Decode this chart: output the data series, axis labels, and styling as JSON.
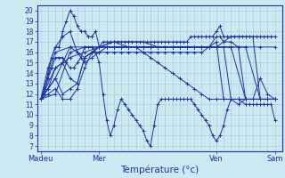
{
  "xlabel": "Température (°c)",
  "bg_color": "#cce8f0",
  "line_color": "#1a34a8",
  "grid_color": "#a8c8d8",
  "ylim": [
    6.5,
    20.5
  ],
  "yticks": [
    7,
    8,
    9,
    10,
    11,
    12,
    13,
    14,
    15,
    16,
    17,
    18,
    19,
    20
  ],
  "xtick_labels": [
    "Madeu",
    "Mer",
    "Ven",
    "Sam"
  ],
  "xtick_positions": [
    0,
    48,
    144,
    192
  ],
  "xlim": [
    -3,
    198
  ],
  "total_hours": 192,
  "series": [
    [
      0,
      11.5,
      3,
      12.5,
      6,
      14.0,
      9,
      15.5,
      12,
      16.5,
      15,
      16.5,
      18,
      18.0,
      21,
      19.0,
      24,
      20.0,
      27,
      19.5,
      30,
      18.5,
      33,
      18.0,
      36,
      18.0,
      39,
      17.5,
      42,
      17.5,
      45,
      18.0,
      48,
      16.5,
      51,
      17.0,
      54,
      17.0,
      57,
      17.0,
      60,
      17.0,
      63,
      17.0,
      66,
      17.0,
      69,
      17.0,
      72,
      17.0,
      75,
      17.0,
      78,
      17.0,
      81,
      17.0,
      84,
      17.0,
      87,
      17.0,
      90,
      17.0,
      93,
      17.0,
      96,
      17.0,
      99,
      17.0,
      102,
      17.0,
      105,
      17.0,
      108,
      17.0,
      111,
      17.0,
      114,
      17.0,
      117,
      17.0,
      120,
      17.0,
      123,
      17.5,
      126,
      17.5,
      129,
      17.5,
      132,
      17.5,
      135,
      17.5,
      138,
      17.5,
      141,
      17.5,
      144,
      18.0,
      147,
      18.5,
      150,
      17.5,
      153,
      17.5,
      156,
      17.5,
      159,
      17.5,
      162,
      17.5,
      165,
      17.5,
      168,
      17.5,
      171,
      17.5,
      174,
      17.5,
      177,
      17.5,
      180,
      17.5,
      183,
      17.5,
      186,
      17.5,
      189,
      17.5,
      192,
      17.5
    ],
    [
      0,
      11.5,
      6,
      14.5,
      12,
      16.5,
      18,
      17.5,
      24,
      18.0,
      30,
      16.0,
      36,
      15.0,
      42,
      15.5,
      48,
      16.0,
      54,
      16.0,
      60,
      16.0,
      66,
      16.0,
      72,
      16.0,
      78,
      16.0,
      84,
      16.0,
      90,
      16.0,
      96,
      16.0,
      102,
      16.0,
      108,
      16.0,
      114,
      16.0,
      120,
      16.0,
      126,
      16.0,
      132,
      16.0,
      138,
      16.5,
      144,
      17.5,
      147,
      17.5,
      150,
      17.0,
      156,
      17.0,
      162,
      16.5,
      168,
      11.5,
      174,
      11.5,
      180,
      13.5,
      186,
      12.0,
      192,
      11.5
    ],
    [
      0,
      11.5,
      3,
      12.0,
      6,
      13.5,
      9,
      14.5,
      12,
      15.5,
      15,
      15.5,
      18,
      15.5,
      21,
      15.0,
      24,
      14.5,
      27,
      14.5,
      30,
      15.0,
      33,
      15.5,
      36,
      16.5,
      39,
      16.5,
      42,
      16.5,
      45,
      16.0,
      48,
      15.0,
      51,
      12.0,
      54,
      9.5,
      57,
      8.0,
      60,
      9.0,
      63,
      10.5,
      66,
      11.5,
      69,
      11.0,
      72,
      10.5,
      75,
      10.0,
      78,
      9.5,
      81,
      9.0,
      84,
      8.5,
      87,
      7.5,
      90,
      7.0,
      93,
      9.0,
      96,
      11.0,
      99,
      11.5,
      102,
      11.5,
      105,
      11.5,
      108,
      11.5,
      111,
      11.5,
      114,
      11.5,
      117,
      11.5,
      120,
      11.5,
      123,
      11.5,
      126,
      11.0,
      129,
      10.5,
      132,
      10.0,
      135,
      9.5,
      138,
      9.0,
      141,
      8.0,
      144,
      7.5,
      147,
      8.0,
      150,
      9.0,
      153,
      10.5,
      156,
      11.5,
      162,
      11.5,
      168,
      11.0,
      171,
      11.0,
      174,
      11.0,
      177,
      11.0,
      180,
      11.0,
      183,
      11.0,
      186,
      11.0,
      189,
      11.0,
      192,
      9.5
    ],
    [
      0,
      11.5,
      6,
      12.5,
      12,
      13.5,
      18,
      12.0,
      24,
      12.5,
      30,
      13.0,
      36,
      15.5,
      42,
      16.0,
      48,
      16.5,
      54,
      16.5,
      60,
      16.5,
      66,
      16.5,
      72,
      16.5,
      78,
      16.5,
      84,
      16.5,
      90,
      16.5,
      96,
      16.5,
      102,
      16.5,
      108,
      16.5,
      114,
      16.5,
      120,
      16.5,
      126,
      16.5,
      132,
      16.5,
      138,
      16.5,
      144,
      17.0,
      150,
      11.5,
      156,
      11.5,
      162,
      11.5,
      168,
      11.5,
      174,
      11.5,
      180,
      11.5,
      186,
      11.5,
      192,
      11.5
    ],
    [
      0,
      11.5,
      6,
      12.0,
      12,
      12.5,
      18,
      11.5,
      24,
      11.5,
      30,
      12.5,
      36,
      14.5,
      42,
      16.0,
      48,
      16.5,
      54,
      16.5,
      60,
      16.5,
      66,
      16.5,
      72,
      16.5,
      78,
      16.5,
      84,
      16.5,
      90,
      16.5,
      96,
      16.5,
      102,
      16.5,
      108,
      16.5,
      114,
      16.5,
      120,
      16.5,
      126,
      16.5,
      132,
      16.5,
      138,
      16.5,
      144,
      16.5,
      150,
      17.0,
      156,
      17.5,
      162,
      17.5,
      168,
      17.5,
      174,
      17.5,
      180,
      11.5,
      186,
      11.5,
      192,
      11.5
    ],
    [
      0,
      11.5,
      12,
      12.0,
      24,
      16.0,
      36,
      16.5,
      48,
      16.5,
      60,
      17.0,
      72,
      17.0,
      84,
      17.0,
      96,
      16.5,
      108,
      16.5,
      120,
      16.5,
      132,
      16.5,
      144,
      16.5,
      156,
      16.5,
      168,
      16.5,
      180,
      16.5,
      192,
      16.5
    ],
    [
      0,
      11.5,
      12,
      14.5,
      24,
      15.5,
      36,
      16.0,
      48,
      16.5,
      60,
      17.0,
      72,
      16.5,
      84,
      16.5,
      96,
      16.5,
      108,
      16.5,
      120,
      16.5,
      132,
      16.5,
      144,
      16.5,
      156,
      16.5,
      168,
      16.5,
      180,
      11.5,
      192,
      11.5
    ],
    [
      0,
      11.5,
      12,
      13.5,
      18,
      15.0,
      24,
      16.5,
      30,
      16.0,
      36,
      15.5,
      42,
      16.0,
      48,
      16.5,
      54,
      16.5,
      60,
      16.5,
      66,
      16.5,
      72,
      16.5,
      78,
      16.5,
      84,
      16.0,
      90,
      15.5,
      96,
      15.0,
      102,
      14.5,
      108,
      14.0,
      114,
      13.5,
      120,
      13.0,
      126,
      12.5,
      132,
      12.0,
      138,
      11.5,
      144,
      11.5,
      150,
      11.5,
      156,
      11.5,
      162,
      11.5,
      168,
      11.5,
      174,
      11.5,
      180,
      11.5,
      186,
      11.5,
      192,
      11.5
    ],
    [
      0,
      11.5,
      6,
      12.5,
      12,
      14.5,
      18,
      15.0,
      24,
      13.5,
      30,
      13.0,
      36,
      15.5,
      42,
      16.0,
      48,
      16.0,
      54,
      16.5,
      60,
      16.5,
      66,
      16.5,
      72,
      16.5,
      78,
      16.5,
      84,
      16.5,
      90,
      16.5,
      96,
      16.5,
      102,
      16.5,
      108,
      16.5,
      114,
      16.5,
      120,
      16.5,
      126,
      16.5,
      132,
      16.5,
      138,
      16.5,
      144,
      16.5,
      150,
      16.5,
      156,
      11.5,
      162,
      11.0,
      168,
      11.5,
      174,
      11.5,
      180,
      11.5,
      186,
      11.5,
      192,
      11.5
    ],
    [
      0,
      11.5,
      12,
      16.0,
      24,
      16.5,
      36,
      16.5,
      48,
      16.5,
      60,
      16.5,
      72,
      16.5,
      84,
      16.5,
      96,
      16.5,
      108,
      16.5,
      120,
      16.5,
      132,
      16.5,
      144,
      16.5,
      156,
      16.5,
      168,
      11.5,
      180,
      11.5,
      192,
      11.5
    ]
  ]
}
